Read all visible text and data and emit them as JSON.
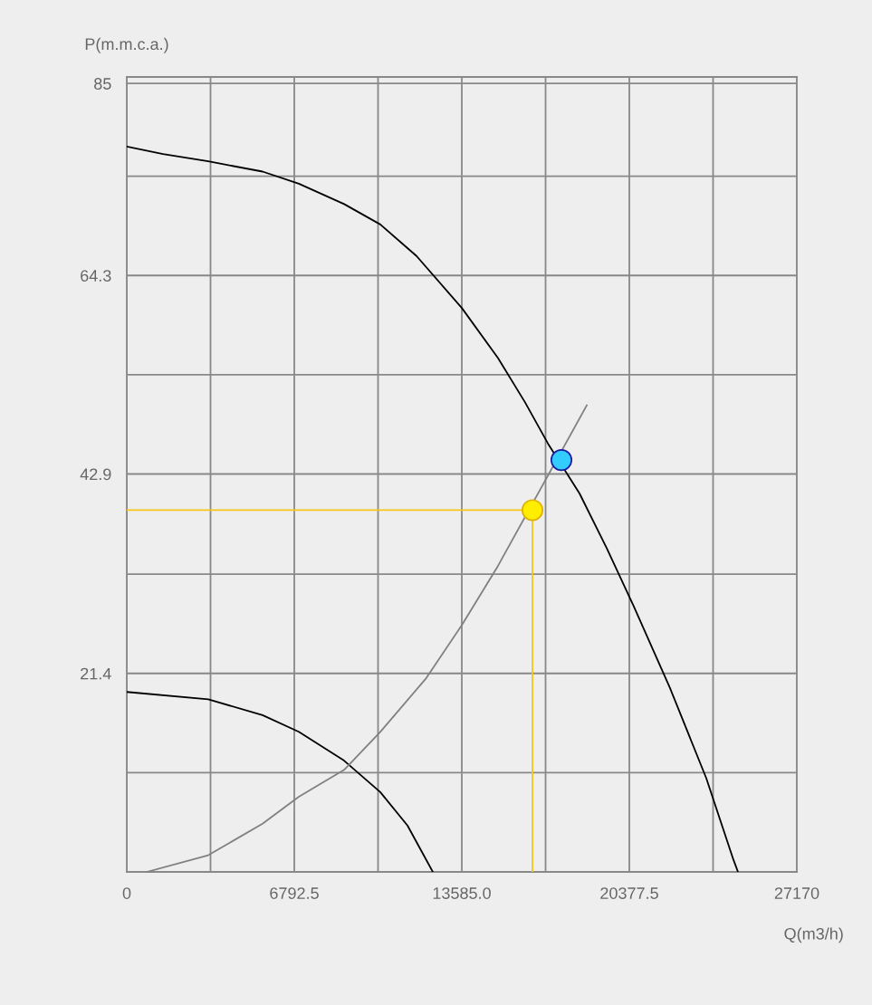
{
  "chart_data": {
    "type": "line",
    "xlabel": "Q(m3/h)",
    "ylabel": "P(m.m.c.a.)",
    "xlim": [
      0,
      27170
    ],
    "ylim": [
      0,
      85.7
    ],
    "xticks": [
      0,
      {
        "value": 3396.25,
        "label": null
      },
      6792.5,
      {
        "value": 10188.75,
        "label": null
      },
      {
        "value": 13585,
        "label": "13585.0"
      },
      {
        "value": 16981.25,
        "label": null
      },
      20377.5,
      {
        "value": 23773.75,
        "label": null
      },
      27170
    ],
    "yticks": [
      {
        "value": 0,
        "label": null
      },
      {
        "value": 10.7,
        "label": null
      },
      21.4,
      {
        "value": 32.1,
        "label": null
      },
      42.9,
      {
        "value": 53.6,
        "label": null
      },
      64.3,
      {
        "value": 75.0,
        "label": null
      },
      85
    ],
    "grid": true,
    "legend": false,
    "marker": "none",
    "line_style": "solid",
    "series": [
      {
        "color": "#000000",
        "x": [
          0,
          1469,
          3304,
          5507,
          6976,
          8812,
          10280,
          11749,
          13585,
          15054,
          16155,
          17073,
          18358,
          19460,
          20561,
          22030,
          23498,
          24600,
          24783
        ],
        "values": [
          78.2,
          77.4,
          76.6,
          75.5,
          74.2,
          72.0,
          69.8,
          66.4,
          60.8,
          55.4,
          50.6,
          46.2,
          40.8,
          34.9,
          28.6,
          19.8,
          10.1,
          1.3,
          0
        ]
      },
      {
        "color": "#000000",
        "x": [
          0,
          3304,
          5507,
          6976,
          8812,
          10280,
          11382,
          12410
        ],
        "values": [
          19.4,
          18.6,
          16.9,
          15.1,
          12.0,
          8.6,
          5.0,
          0
        ]
      },
      {
        "color": "#808080",
        "x": [
          808,
          3304,
          5507,
          6976,
          8812,
          10280,
          12116,
          13585,
          15054,
          18652
        ],
        "values": [
          0,
          1.8,
          5.2,
          8.1,
          11.0,
          15.1,
          20.8,
          26.6,
          33.0,
          50.3
        ]
      },
      {
        "color": "#f5c518",
        "x": [
          0,
          16449,
          16449
        ],
        "values": [
          39.0,
          39.0,
          0
        ]
      },
      {
        "type": "scatter",
        "marker": "circle",
        "color": "#33ccff",
        "x": [
          17624
        ],
        "values": [
          44.4
        ]
      },
      {
        "type": "scatter",
        "marker": "circle",
        "color": "#ffee00",
        "x": [
          16449
        ],
        "values": [
          39.0
        ]
      }
    ]
  }
}
